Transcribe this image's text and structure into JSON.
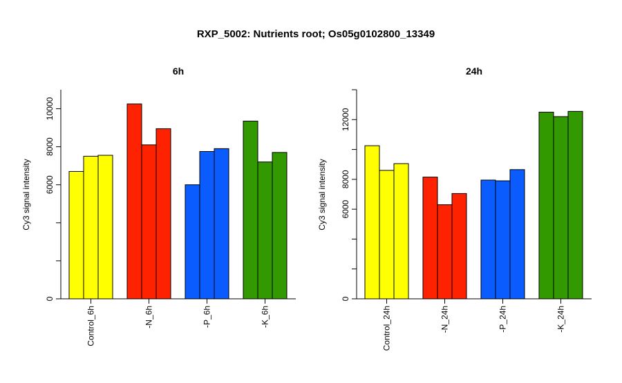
{
  "title": "RXP_5002: Nutrients root; Os05g0102800_13349",
  "colors": {
    "control": "#ffff00",
    "n": "#ff2200",
    "p": "#0a5cff",
    "k": "#339900"
  },
  "chart_data": [
    {
      "type": "bar",
      "title": "6h",
      "ylabel": "Cy3 signal intensity",
      "ylim": [
        0,
        11000
      ],
      "yticks": [
        0,
        6000,
        8000,
        10000
      ],
      "categories": [
        "Control_6h",
        "-N_6h",
        "-P_6h",
        "-K_6h"
      ],
      "groups": [
        {
          "category": "Control_6h",
          "color_key": "control",
          "values": [
            6700,
            7500,
            7550
          ]
        },
        {
          "category": "-N_6h",
          "color_key": "n",
          "values": [
            10250,
            8100,
            8950
          ]
        },
        {
          "category": "-P_6h",
          "color_key": "p",
          "values": [
            6000,
            7750,
            7900
          ]
        },
        {
          "category": "-K_6h",
          "color_key": "k",
          "values": [
            9350,
            7200,
            7700
          ]
        }
      ]
    },
    {
      "type": "bar",
      "title": "24h",
      "ylabel": "Cy3 signal intensity",
      "ylim": [
        0,
        14000
      ],
      "yticks": [
        0,
        6000,
        8000,
        12000
      ],
      "categories": [
        "Control_24h",
        "-N_24h",
        "-P_24h",
        "-K_24h"
      ],
      "groups": [
        {
          "category": "Control_24h",
          "color_key": "control",
          "values": [
            10250,
            8600,
            9050
          ]
        },
        {
          "category": "-N_24h",
          "color_key": "n",
          "values": [
            8150,
            6300,
            7050
          ]
        },
        {
          "category": "-P_24h",
          "color_key": "p",
          "values": [
            7950,
            7900,
            8650
          ]
        },
        {
          "category": "-K_24h",
          "color_key": "k",
          "values": [
            12500,
            12200,
            12550
          ]
        }
      ]
    }
  ]
}
